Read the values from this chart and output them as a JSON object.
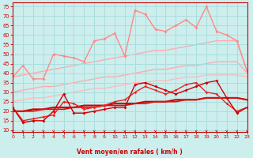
{
  "xlabel": "Vent moyen/en rafales ( km/h )",
  "bg_color": "#cceeed",
  "grid_color": "#aadddd",
  "x_ticks": [
    0,
    1,
    2,
    3,
    4,
    5,
    6,
    7,
    8,
    9,
    10,
    11,
    12,
    13,
    14,
    15,
    16,
    17,
    18,
    19,
    20,
    21,
    22,
    23
  ],
  "y_ticks": [
    10,
    15,
    20,
    25,
    30,
    35,
    40,
    45,
    50,
    55,
    60,
    65,
    70,
    75
  ],
  "ylim": [
    9,
    77
  ],
  "xlim": [
    0,
    23
  ],
  "lines": [
    {
      "y": [
        38,
        39,
        40,
        41,
        42,
        43,
        44,
        45,
        46,
        47,
        48,
        49,
        50,
        51,
        52,
        52,
        53,
        54,
        55,
        56,
        57,
        57,
        57,
        41
      ],
      "color": "#ffaaaa",
      "lw": 1.0,
      "marker": null,
      "ms": 0,
      "zorder": 1
    },
    {
      "y": [
        30,
        31,
        32,
        33,
        33,
        34,
        35,
        36,
        37,
        38,
        38,
        39,
        40,
        41,
        42,
        42,
        43,
        44,
        44,
        45,
        46,
        46,
        46,
        40
      ],
      "color": "#ffaaaa",
      "lw": 1.0,
      "marker": null,
      "ms": 0,
      "zorder": 1
    },
    {
      "y": [
        38,
        44,
        37,
        37,
        50,
        49,
        48,
        46,
        57,
        58,
        61,
        49,
        73,
        71,
        63,
        62,
        65,
        68,
        64,
        75,
        62,
        60,
        57,
        41
      ],
      "color": "#ff8888",
      "lw": 1.0,
      "marker": "D",
      "ms": 2.0,
      "zorder": 2
    },
    {
      "y": [
        25,
        26,
        27,
        27,
        28,
        29,
        30,
        31,
        32,
        32,
        33,
        34,
        35,
        35,
        36,
        36,
        37,
        38,
        38,
        39,
        39,
        39,
        39,
        38
      ],
      "color": "#ffbbbb",
      "lw": 1.0,
      "marker": null,
      "ms": 0,
      "zorder": 1
    },
    {
      "y": [
        22,
        14,
        15,
        15,
        20,
        29,
        19,
        19,
        20,
        21,
        22,
        22,
        34,
        35,
        33,
        31,
        29,
        31,
        33,
        35,
        36,
        27,
        19,
        22
      ],
      "color": "#cc0000",
      "lw": 1.0,
      "marker": "D",
      "ms": 2.0,
      "zorder": 4
    },
    {
      "y": [
        20,
        20,
        20,
        21,
        21,
        21,
        22,
        22,
        22,
        23,
        23,
        23,
        24,
        24,
        25,
        25,
        25,
        26,
        26,
        27,
        27,
        27,
        27,
        26
      ],
      "color": "#dd1111",
      "lw": 1.2,
      "marker": null,
      "ms": 0,
      "zorder": 3
    },
    {
      "y": [
        22,
        15,
        16,
        17,
        18,
        25,
        24,
        21,
        22,
        23,
        25,
        26,
        30,
        33,
        31,
        29,
        31,
        34,
        35,
        30,
        29,
        24,
        20,
        22
      ],
      "color": "#ee2222",
      "lw": 1.0,
      "marker": "D",
      "ms": 1.8,
      "zorder": 3
    },
    {
      "y": [
        20,
        20,
        21,
        21,
        22,
        22,
        22,
        23,
        23,
        23,
        24,
        24,
        24,
        25,
        25,
        25,
        26,
        26,
        26,
        27,
        27,
        27,
        27,
        26
      ],
      "color": "#cc0000",
      "lw": 1.5,
      "marker": null,
      "ms": 0,
      "zorder": 2
    }
  ],
  "arrow_color": "#cc0000",
  "xlabel_color": "#cc0000",
  "tick_color": "#cc0000",
  "axis_color": "#cc0000",
  "tick_labelsize": 4.5,
  "xlabel_fontsize": 5.5
}
